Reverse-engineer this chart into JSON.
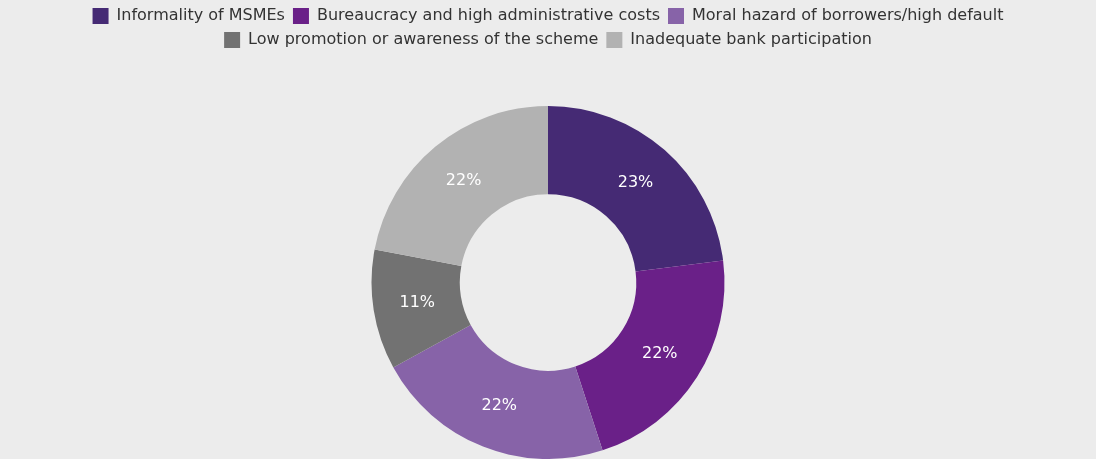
{
  "chart_data": {
    "type": "donut",
    "categories": [
      "Informality of MSMEs",
      "Bureaucracy and high administrative costs",
      "Moral hazard of borrowers/high default",
      "Low promotion or awareness of the scheme",
      "Inadequate bank participation"
    ],
    "values": [
      23,
      22,
      22,
      11,
      22
    ],
    "colors": [
      "#452a74",
      "#6a2088",
      "#8763a8",
      "#727272",
      "#b2b2b2"
    ],
    "value_labels": [
      "23%",
      "22%",
      "22%",
      "11%",
      "22%"
    ],
    "legend": "top"
  }
}
